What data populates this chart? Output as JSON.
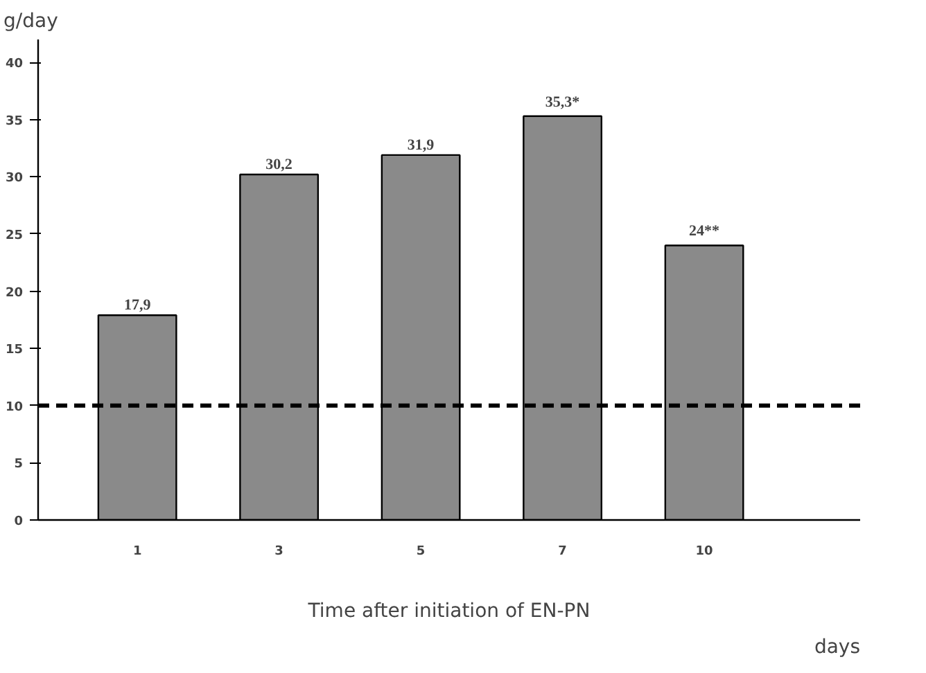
{
  "chart_data": {
    "type": "bar",
    "ylabel": "g/day",
    "xlabel": "Time after initiation of EN-PN",
    "categories": [
      "1",
      "3",
      "5",
      "7",
      "10"
    ],
    "values": [
      17.9,
      30.2,
      31.9,
      35.3,
      24
    ],
    "value_labels": [
      "17,9",
      "30,2",
      "31,9",
      "35,3*",
      "24**"
    ],
    "color": "#8a8a8a",
    "ylim": [
      0,
      42
    ],
    "yticks": [
      0,
      5,
      10,
      15,
      20,
      25,
      30,
      35,
      40
    ],
    "ref_lines": [
      {
        "axis": "y",
        "value": 10,
        "label": null,
        "color": "#000000",
        "line_style": "dashed"
      }
    ],
    "annotations": [
      "days"
    ],
    "grid": false
  }
}
